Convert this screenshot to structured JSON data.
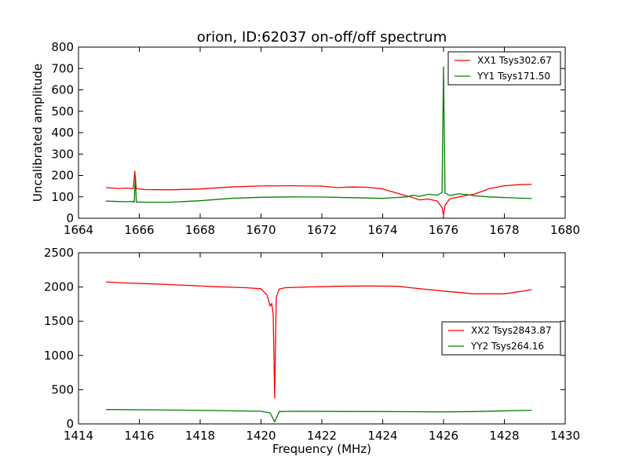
{
  "figure": {
    "title": "orion, ID:62037 on-off/off spectrum"
  },
  "chart_data": [
    {
      "type": "line",
      "title": "orion, ID:62037 on-off/off spectrum",
      "xlabel": "",
      "ylabel": "Uncalibrated amplitude",
      "xlim": [
        1664,
        1680
      ],
      "ylim": [
        0,
        800
      ],
      "xticks": [
        1664,
        1666,
        1668,
        1670,
        1672,
        1674,
        1676,
        1678,
        1680
      ],
      "yticks": [
        0,
        100,
        200,
        300,
        400,
        500,
        600,
        700,
        800
      ],
      "grid": false,
      "legend_position": "top-right",
      "series": [
        {
          "name": "XX1 Tsys302.67",
          "color": "#ff0000",
          "x": [
            1664.9,
            1665.3,
            1665.6,
            1665.8,
            1665.85,
            1665.9,
            1666.2,
            1667.0,
            1668.0,
            1669.0,
            1670.0,
            1671.0,
            1672.0,
            1672.5,
            1673.0,
            1673.5,
            1674.0,
            1674.5,
            1674.8,
            1675.0,
            1675.2,
            1675.5,
            1675.8,
            1675.95,
            1676.0,
            1676.05,
            1676.2,
            1676.5,
            1676.8,
            1677.0,
            1677.5,
            1678.0,
            1678.5,
            1678.9
          ],
          "values": [
            143,
            139,
            141,
            138,
            220,
            138,
            134,
            133,
            137,
            146,
            151,
            152,
            150,
            143,
            146,
            145,
            137,
            116,
            104,
            96,
            86,
            90,
            80,
            50,
            15,
            60,
            90,
            100,
            108,
            112,
            138,
            152,
            157,
            158
          ]
        },
        {
          "name": "YY1 Tsys171.50",
          "color": "#008000",
          "x": [
            1664.9,
            1665.3,
            1665.6,
            1665.8,
            1665.83,
            1665.87,
            1665.9,
            1666.2,
            1667.0,
            1668.0,
            1669.0,
            1670.0,
            1671.0,
            1672.0,
            1673.0,
            1674.0,
            1674.8,
            1675.0,
            1675.2,
            1675.5,
            1675.8,
            1675.95,
            1676.0,
            1676.05,
            1676.2,
            1676.5,
            1676.8,
            1677.0,
            1677.5,
            1678.0,
            1678.5,
            1678.9
          ],
          "values": [
            80,
            78,
            77,
            78,
            75,
            195,
            76,
            75,
            75,
            82,
            93,
            98,
            100,
            99,
            96,
            93,
            100,
            108,
            102,
            112,
            108,
            120,
            707,
            118,
            106,
            114,
            110,
            105,
            100,
            97,
            94,
            92
          ]
        }
      ]
    },
    {
      "type": "line",
      "title": "",
      "xlabel": "Frequency (MHz)",
      "ylabel": "",
      "xlim": [
        1414,
        1430
      ],
      "ylim": [
        0,
        2500
      ],
      "xticks": [
        1414,
        1416,
        1418,
        1420,
        1422,
        1424,
        1426,
        1428,
        1430
      ],
      "yticks": [
        0,
        500,
        1000,
        1500,
        2000,
        2500
      ],
      "grid": false,
      "legend_position": "center-right",
      "series": [
        {
          "name": "XX2 Tsys2843.87",
          "color": "#ff0000",
          "x": [
            1414.9,
            1415.5,
            1416.5,
            1417.5,
            1418.5,
            1419.5,
            1420.0,
            1420.2,
            1420.3,
            1420.35,
            1420.4,
            1420.45,
            1420.5,
            1420.6,
            1420.8,
            1421.5,
            1422.5,
            1423.5,
            1424.5,
            1425.0,
            1426.0,
            1427.0,
            1428.0,
            1428.9
          ],
          "values": [
            2075,
            2060,
            2045,
            2025,
            2005,
            1990,
            1975,
            1880,
            1720,
            1760,
            1600,
            380,
            1850,
            1970,
            1990,
            2000,
            2010,
            2015,
            2010,
            1985,
            1940,
            1900,
            1900,
            1960
          ]
        },
        {
          "name": "YY2 Tsys264.16",
          "color": "#008000",
          "x": [
            1414.9,
            1416.5,
            1418.5,
            1420.0,
            1420.3,
            1420.45,
            1420.6,
            1421.0,
            1424.0,
            1426.0,
            1427.0,
            1428.9
          ],
          "values": [
            210,
            205,
            195,
            185,
            160,
            30,
            180,
            185,
            180,
            175,
            180,
            200
          ]
        }
      ]
    }
  ]
}
